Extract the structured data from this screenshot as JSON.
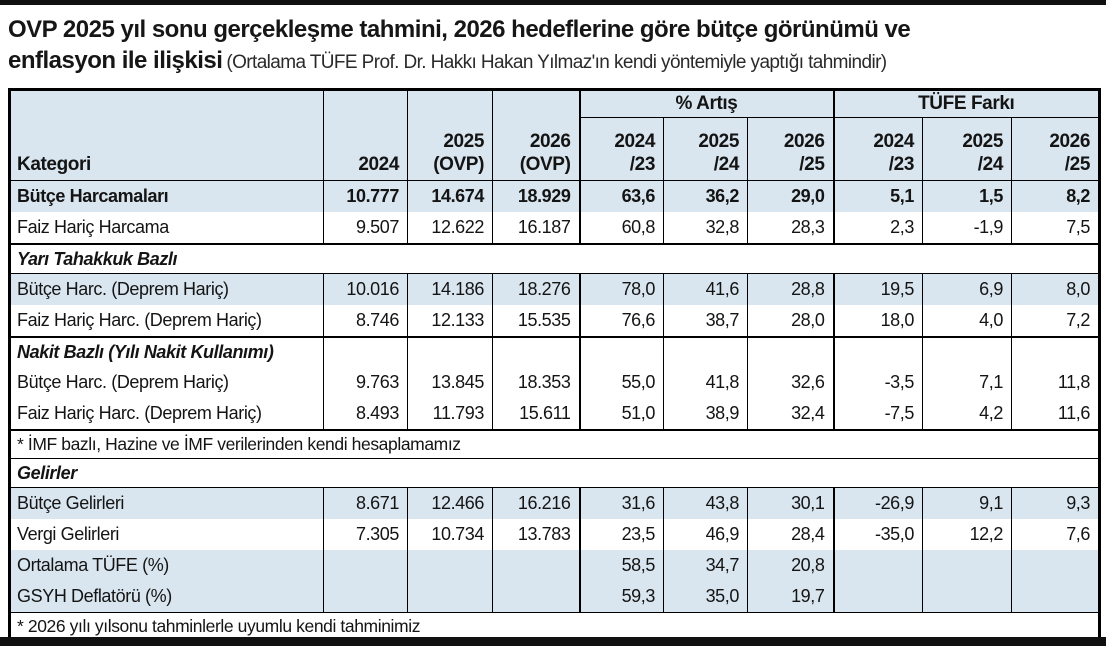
{
  "title": {
    "line1": "OVP 2025 yıl sonu gerçekleşme tahmini, 2026 hedeflerine göre bütçe görünümü ve",
    "line2_bold": "enflasyon ile ilişkisi",
    "line2_note": "(Ortalama TÜFE Prof. Dr. Hakkı Hakan Yılmaz'ın kendi yöntemiyle yaptığı tahmindir)"
  },
  "colors": {
    "row_blue": "#d9e6ef",
    "rule_black": "#101010"
  },
  "table": {
    "headers": {
      "kategori": "Kategori",
      "y2024": "2024",
      "y2025": "2025\n(OVP)",
      "y2026": "2026\n(OVP)",
      "groups": [
        {
          "label": "% Artış",
          "cols": [
            "2024\n/23",
            "2025\n/24",
            "2026\n/25"
          ]
        },
        {
          "label": "TÜFE Farkı",
          "cols": [
            "2024\n/23",
            "2025\n/24",
            "2026\n/25"
          ]
        }
      ]
    },
    "rows": [
      {
        "type": "data",
        "label": "Bütçe Harcamaları",
        "values": [
          "10.777",
          "14.674",
          "18.929",
          "63,6",
          "36,2",
          "29,0",
          "5,1",
          "1,5",
          "8,2"
        ]
      },
      {
        "type": "data",
        "label": "Faiz Hariç Harcama",
        "values": [
          "9.507",
          "12.622",
          "16.187",
          "60,8",
          "32,8",
          "28,3",
          "2,3",
          "-1,9",
          "7,5"
        ]
      },
      {
        "type": "section",
        "label": "Yarı Tahakkuk Bazlı"
      },
      {
        "type": "data",
        "label": "Bütçe Harc. (Deprem Hariç)",
        "values": [
          "10.016",
          "14.186",
          "18.276",
          "78,0",
          "41,6",
          "28,8",
          "19,5",
          "6,9",
          "8,0"
        ]
      },
      {
        "type": "data",
        "label": "Faiz Hariç Harc. (Deprem Hariç)",
        "values": [
          "8.746",
          "12.133",
          "15.535",
          "76,6",
          "38,7",
          "28,0",
          "18,0",
          "4,0",
          "7,2"
        ]
      },
      {
        "type": "section-cells",
        "label": "Nakit Bazlı (Yılı Nakit Kullanımı)",
        "values": [
          "",
          "",
          "",
          "",
          "",
          "",
          "",
          "",
          ""
        ]
      },
      {
        "type": "data",
        "label": "Bütçe Harc. (Deprem Hariç)",
        "values": [
          "9.763",
          "13.845",
          "18.353",
          "55,0",
          "41,8",
          "32,6",
          "-3,5",
          "7,1",
          "11,8"
        ]
      },
      {
        "type": "data",
        "label": "Faiz Hariç Harc. (Deprem Hariç)",
        "values": [
          "8.493",
          "11.793",
          "15.611",
          "51,0",
          "38,9",
          "32,4",
          "-7,5",
          "4,2",
          "11,6"
        ]
      },
      {
        "type": "footnote",
        "label": "* İMF bazlı, Hazine ve İMF verilerinden kendi hesaplamamız"
      },
      {
        "type": "section",
        "label": "Gelirler"
      },
      {
        "type": "data",
        "label": "Bütçe Gelirleri",
        "values": [
          "8.671",
          "12.466",
          "16.216",
          "31,6",
          "43,8",
          "30,1",
          "-26,9",
          "9,1",
          "9,3"
        ]
      },
      {
        "type": "data",
        "label": "Vergi Gelirleri",
        "values": [
          "7.305",
          "10.734",
          "13.783",
          "23,5",
          "46,9",
          "28,4",
          "-35,0",
          "12,2",
          "7,6"
        ]
      },
      {
        "type": "data",
        "label": "Ortalama TÜFE (%)",
        "values": [
          "",
          "",
          "",
          "58,5",
          "34,7",
          "20,8",
          "",
          "",
          ""
        ]
      },
      {
        "type": "data",
        "label": "GSYH Deflatörü (%)",
        "values": [
          "",
          "",
          "",
          "59,3",
          "35,0",
          "19,7",
          "",
          "",
          ""
        ]
      },
      {
        "type": "footnote",
        "label": "* 2026 yılı yılsonu tahminlerle uyumlu kendi tahminimiz"
      }
    ]
  }
}
